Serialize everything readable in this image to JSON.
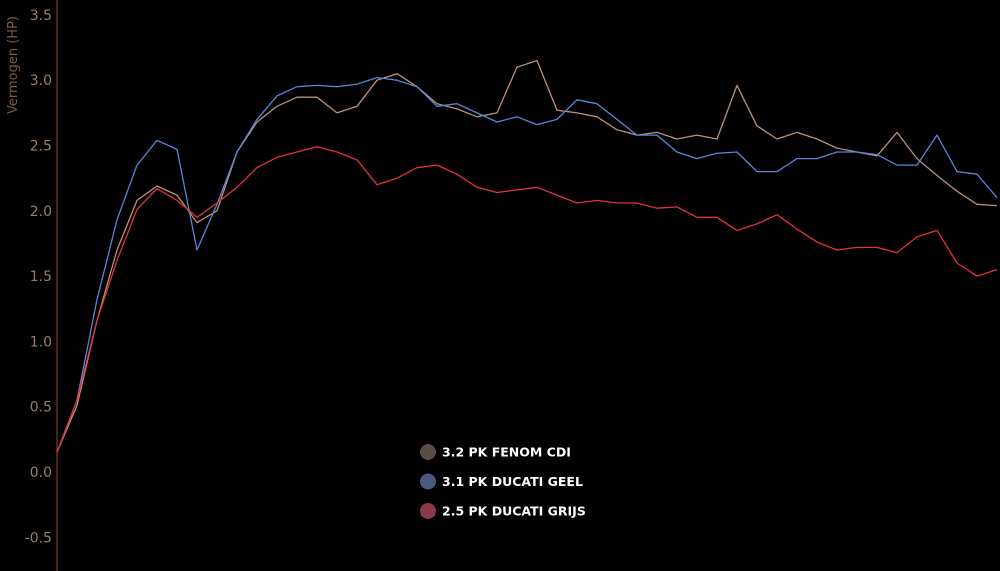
{
  "chart_data": {
    "type": "line",
    "title": "",
    "xlabel": "",
    "ylabel": "Vermogen (HP)",
    "ylim": [
      -0.6,
      3.6
    ],
    "yticks": [
      "3.5",
      "3.0",
      "2.5",
      "2.0",
      "1.5",
      "1.0",
      "0.5",
      "0.0",
      "-0.5"
    ],
    "grid": false,
    "legend_position": "bottom-center",
    "series": [
      {
        "name": "3.2 PK FENOM CDI",
        "color": "#b8927a",
        "legend_color": "#5a4b46",
        "values": [
          0.15,
          0.51,
          1.16,
          1.7,
          2.08,
          2.19,
          2.12,
          1.91,
          2.0,
          2.45,
          2.68,
          2.8,
          2.87,
          2.87,
          2.75,
          2.8,
          3.0,
          3.05,
          2.95,
          2.82,
          2.78,
          2.72,
          2.75,
          3.1,
          3.15,
          2.77,
          2.75,
          2.72,
          2.62,
          2.58,
          2.6,
          2.55,
          2.58,
          2.55,
          2.96,
          2.65,
          2.55,
          2.6,
          2.55,
          2.48,
          2.45,
          2.42,
          2.6,
          2.4,
          2.27,
          2.15,
          2.05,
          2.04
        ]
      },
      {
        "name": "3.1 PK DUCATI GEEL",
        "color": "#5b84d8",
        "legend_color": "#4a5a7e",
        "values": [
          0.15,
          0.55,
          1.32,
          1.93,
          2.35,
          2.54,
          2.47,
          1.7,
          2.05,
          2.45,
          2.7,
          2.88,
          2.95,
          2.96,
          2.95,
          2.97,
          3.02,
          3.0,
          2.95,
          2.8,
          2.82,
          2.75,
          2.68,
          2.72,
          2.66,
          2.7,
          2.85,
          2.82,
          2.7,
          2.58,
          2.58,
          2.45,
          2.4,
          2.44,
          2.45,
          2.3,
          2.3,
          2.4,
          2.4,
          2.45,
          2.45,
          2.43,
          2.35,
          2.35,
          2.58,
          2.3,
          2.28,
          2.1
        ]
      },
      {
        "name": "2.5 PK DUCATI GRIJS",
        "color": "#e2323c",
        "legend_color": "#8a3a48",
        "values": [
          0.15,
          0.55,
          1.16,
          1.62,
          2.01,
          2.17,
          2.08,
          1.95,
          2.06,
          2.18,
          2.33,
          2.41,
          2.45,
          2.49,
          2.45,
          2.39,
          2.2,
          2.25,
          2.33,
          2.35,
          2.28,
          2.18,
          2.14,
          2.16,
          2.18,
          2.12,
          2.06,
          2.08,
          2.06,
          2.06,
          2.02,
          2.03,
          1.95,
          1.95,
          1.85,
          1.9,
          1.97,
          1.86,
          1.76,
          1.7,
          1.72,
          1.72,
          1.68,
          1.8,
          1.85,
          1.6,
          1.5,
          1.55
        ]
      }
    ]
  }
}
